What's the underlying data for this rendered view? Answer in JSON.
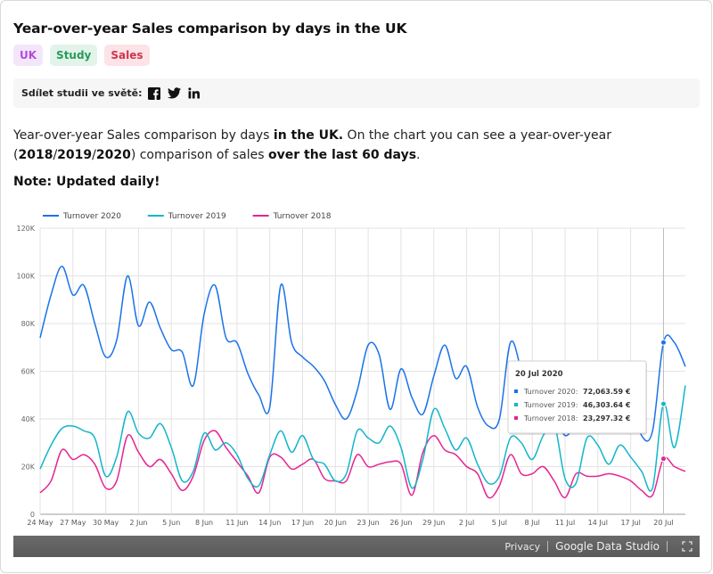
{
  "title": "Year-over-year Sales comparison by days in the UK",
  "tags": [
    {
      "label": "UK",
      "color": "#b44bd9",
      "bg": "#f3e6fb"
    },
    {
      "label": "Study",
      "color": "#2a9a5a",
      "bg": "#e2f4ea"
    },
    {
      "label": "Sales",
      "color": "#d0344a",
      "bg": "#fbe3e7"
    }
  ],
  "share": {
    "label": "Sdílet studii ve světě:",
    "icons": [
      "facebook-icon",
      "twitter-icon",
      "linkedin-icon"
    ]
  },
  "description": {
    "p1": "Year-over-year Sales comparison by days ",
    "b1": "in the UK.",
    "p2": " On the chart you can see a year-over-year (",
    "b2": "2018",
    "s1": "/",
    "b3": "2019",
    "s2": "/",
    "b4": "2020",
    "p3": ") comparison of sales ",
    "b5": "over the last 60 days",
    "p4": "."
  },
  "note": "Note: Updated daily!",
  "chart_data": {
    "type": "line",
    "ylim": [
      0,
      120000
    ],
    "yticks": [
      "0",
      "20K",
      "40K",
      "60K",
      "80K",
      "100K",
      "120K"
    ],
    "xtick_labels": [
      "24 May",
      "27 May",
      "30 May",
      "2 Jun",
      "5 Jun",
      "8 Jun",
      "11 Jun",
      "14 Jun",
      "17 Jun",
      "20 Jun",
      "23 Jun",
      "26 Jun",
      "29 Jun",
      "2 Jul",
      "5 Jul",
      "8 Jul",
      "11 Jul",
      "14 Jul",
      "17 Jul",
      "20 Jul"
    ],
    "grid": true,
    "legend_position": "top-left",
    "series": [
      {
        "name": "Turnover 2020",
        "color": "#1a73e8",
        "values": [
          74000,
          92000,
          104000,
          92000,
          96000,
          80000,
          66000,
          73000,
          100000,
          79000,
          89000,
          78000,
          69000,
          68000,
          54000,
          84000,
          96000,
          74000,
          72000,
          59000,
          50000,
          45000,
          96000,
          72000,
          66000,
          62000,
          56000,
          46000,
          40000,
          52000,
          71000,
          67000,
          44000,
          61000,
          49000,
          42000,
          58000,
          71000,
          57000,
          62000,
          45000,
          37000,
          40000,
          72000,
          60000,
          40000,
          37000,
          42000,
          33000,
          38000,
          42000,
          46000,
          39000,
          40000,
          49000,
          33000,
          35000,
          72063,
          72000,
          62000
        ]
      },
      {
        "name": "Turnover 2019",
        "color": "#12b5cb",
        "values": [
          19000,
          29000,
          36000,
          37000,
          35000,
          32000,
          16000,
          24000,
          43000,
          34000,
          32000,
          38000,
          28000,
          14000,
          18000,
          34000,
          27000,
          30000,
          25000,
          15000,
          12000,
          25000,
          35000,
          26000,
          33000,
          23000,
          21000,
          14000,
          17000,
          35000,
          32000,
          30000,
          37000,
          28000,
          11000,
          23000,
          44000,
          36000,
          27000,
          32000,
          21000,
          13000,
          16000,
          32000,
          30000,
          23000,
          33000,
          38000,
          15000,
          13000,
          32000,
          29000,
          21000,
          29000,
          24000,
          18000,
          11000,
          46303,
          28000,
          54000
        ]
      },
      {
        "name": "Turnover 2018",
        "color": "#e52592",
        "values": [
          9000,
          14000,
          27000,
          23000,
          25000,
          21000,
          11000,
          14000,
          33000,
          26000,
          20000,
          23000,
          17000,
          10000,
          16000,
          31000,
          35000,
          28000,
          22000,
          16000,
          9000,
          24000,
          24000,
          19000,
          21000,
          23000,
          15000,
          14000,
          14000,
          25000,
          20000,
          21000,
          22000,
          21000,
          8000,
          26000,
          33000,
          27000,
          25000,
          20000,
          17000,
          7000,
          12000,
          25000,
          17000,
          17000,
          20000,
          14000,
          7000,
          17000,
          16000,
          16000,
          17000,
          16000,
          14000,
          10000,
          8000,
          23297,
          20000,
          18000
        ]
      }
    ],
    "tooltip": {
      "title": "20 Jul 2020",
      "rows": [
        {
          "label": "Turnover 2020: ",
          "value": "72,063.59 €"
        },
        {
          "label": "Turnover 2019: ",
          "value": "46,303.64 €"
        },
        {
          "label": "Turnover 2018: ",
          "value": "23,297.32 €"
        }
      ]
    }
  },
  "footer": {
    "privacy": "Privacy",
    "brand": "Google Data Studio"
  }
}
